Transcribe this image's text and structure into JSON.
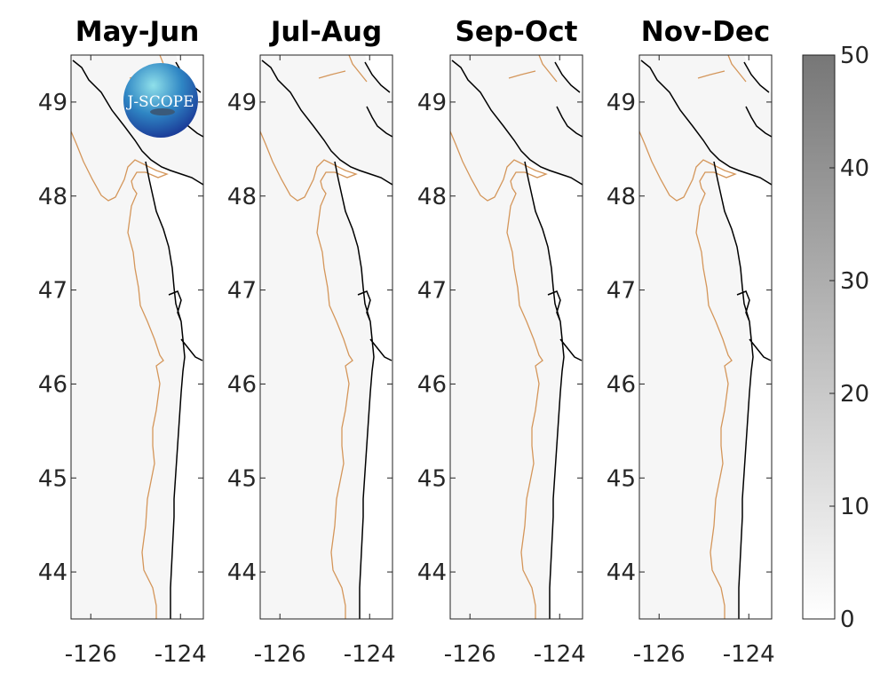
{
  "chart_data": {
    "type": "heatmap",
    "panels": [
      {
        "title": "May-Jun"
      },
      {
        "title": "Jul-Aug"
      },
      {
        "title": "Sep-Oct"
      },
      {
        "title": "Nov-Dec"
      }
    ],
    "xlim": [
      -126.44,
      -123.49
    ],
    "ylim": [
      43.5,
      49.5
    ],
    "xticks": [
      -126,
      -124
    ],
    "xtick_labels": [
      "-126",
      "-124"
    ],
    "yticks": [
      44,
      45,
      46,
      47,
      48,
      49
    ],
    "ytick_labels": [
      "44",
      "45",
      "46",
      "47",
      "48",
      "49"
    ],
    "field_value_approx": 1,
    "colorbar": {
      "range": [
        0,
        50
      ],
      "ticks": [
        0,
        10,
        20,
        30,
        40,
        50
      ],
      "tick_labels": [
        "0",
        "10",
        "20",
        "30",
        "40",
        "50"
      ],
      "colormap": "white-to-gray",
      "color_low": "#ffffff",
      "color_high": "#777777"
    },
    "coastline_color": "#000000",
    "isobath_color": "#d4965a",
    "logo_text": "J-SCOPE"
  }
}
